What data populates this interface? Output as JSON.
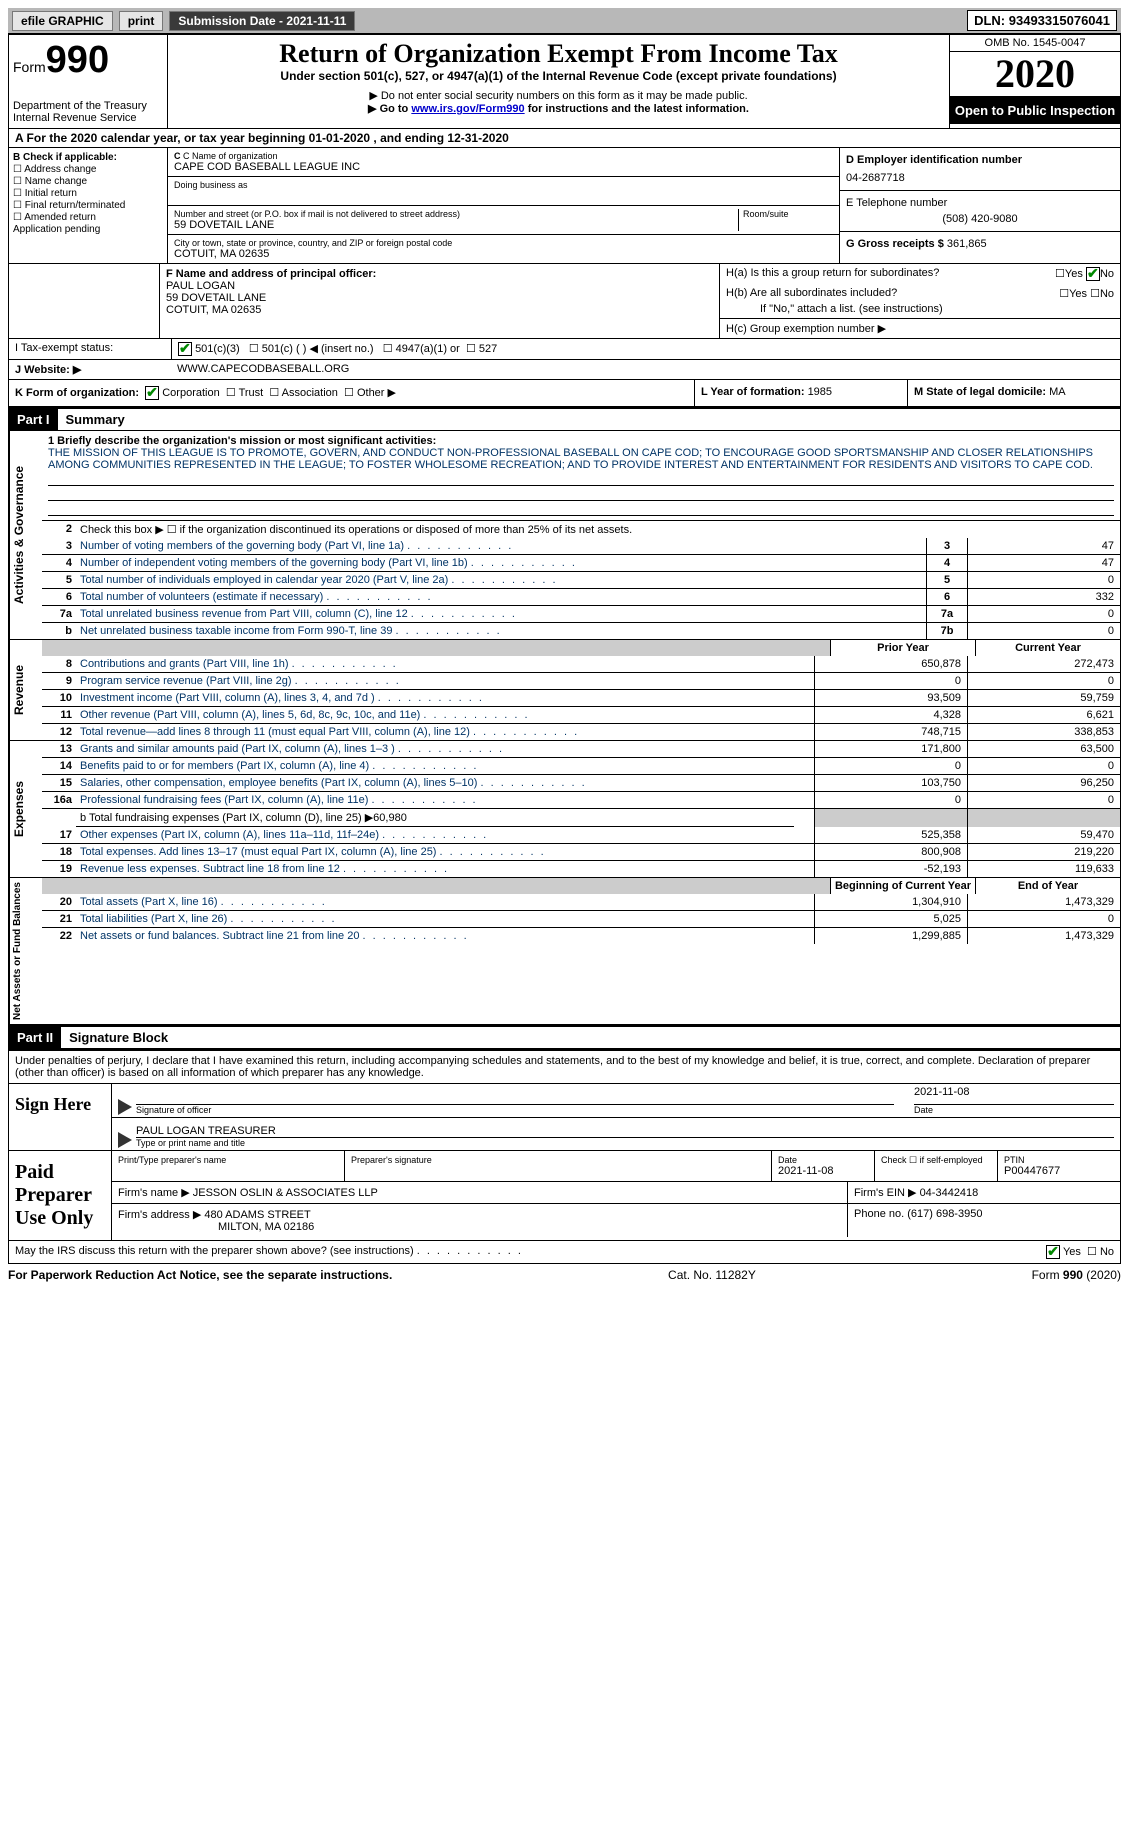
{
  "topbar": {
    "efile": "efile GRAPHIC",
    "print": "print",
    "submission_label": "Submission Date - ",
    "submission_date": "2021-11-11",
    "dln_label": "DLN: ",
    "dln": "93493315076041"
  },
  "header": {
    "form_word": "Form",
    "form_num": "990",
    "dept1": "Department of the Treasury",
    "dept2": "Internal Revenue Service",
    "title": "Return of Organization Exempt From Income Tax",
    "subtitle": "Under section 501(c), 527, or 4947(a)(1) of the Internal Revenue Code (except private foundations)",
    "note1": "▶ Do not enter social security numbers on this form as it may be made public.",
    "note2_pre": "▶ Go to ",
    "note2_link": "www.irs.gov/Form990",
    "note2_post": " for instructions and the latest information.",
    "omb": "OMB No. 1545-0047",
    "year": "2020",
    "open": "Open to Public Inspection"
  },
  "period": {
    "text_pre": "A For the 2020 calendar year, or tax year beginning ",
    "begin": "01-01-2020",
    "mid": " , and ending ",
    "end": "12-31-2020"
  },
  "boxB": {
    "label": "B Check if applicable:",
    "opts": [
      "Address change",
      "Name change",
      "Initial return",
      "Final return/terminated",
      "Amended return",
      "Application pending"
    ]
  },
  "boxC": {
    "name_label": "C Name of organization",
    "name": "CAPE COD BASEBALL LEAGUE INC",
    "dba_label": "Doing business as",
    "addr_label": "Number and street (or P.O. box if mail is not delivered to street address)",
    "room_label": "Room/suite",
    "addr": "59 DOVETAIL LANE",
    "city_label": "City or town, state or province, country, and ZIP or foreign postal code",
    "city": "COTUIT, MA  02635"
  },
  "boxD": {
    "label": "D Employer identification number",
    "ein": "04-2687718"
  },
  "boxE": {
    "label": "E Telephone number",
    "phone": "(508) 420-9080"
  },
  "boxG": {
    "label": "G Gross receipts $ ",
    "amount": "361,865"
  },
  "boxF": {
    "label": "F  Name and address of principal officer:",
    "name": "PAUL LOGAN",
    "addr1": "59 DOVETAIL LANE",
    "addr2": "COTUIT, MA  02635"
  },
  "boxH": {
    "ha": "H(a)  Is this a group return for subordinates?",
    "hb": "H(b)  Are all subordinates included?",
    "hb_note": "If \"No,\" attach a list. (see instructions)",
    "hc": "H(c)  Group exemption number ▶",
    "yes": "Yes",
    "no": "No"
  },
  "rowI": {
    "label": "I  Tax-exempt status:",
    "o1": "501(c)(3)",
    "o2": "501(c) (  ) ◀ (insert no.)",
    "o3": "4947(a)(1) or",
    "o4": "527"
  },
  "rowJ": {
    "label": "J  Website: ▶",
    "url": "WWW.CAPECODBASEBALL.ORG"
  },
  "rowK": {
    "label": "K Form of organization:",
    "o1": "Corporation",
    "o2": "Trust",
    "o3": "Association",
    "o4": "Other ▶"
  },
  "rowL": {
    "label": "L Year of formation: ",
    "val": "1985"
  },
  "rowM": {
    "label": "M State of legal domicile: ",
    "val": "MA"
  },
  "part1": {
    "hdr": "Part I",
    "title": "Summary",
    "tab_gov": "Activities & Governance",
    "tab_rev": "Revenue",
    "tab_exp": "Expenses",
    "tab_net": "Net Assets or Fund Balances",
    "line1_label": "1  Briefly describe the organization's mission or most significant activities:",
    "mission": "THE MISSION OF THIS LEAGUE IS TO PROMOTE, GOVERN, AND CONDUCT NON-PROFESSIONAL BASEBALL ON CAPE COD; TO ENCOURAGE GOOD SPORTSMANSHIP AND CLOSER RELATIONSHIPS AMONG COMMUNITIES REPRESENTED IN THE LEAGUE; TO FOSTER WHOLESOME RECREATION; AND TO PROVIDE INTEREST AND ENTERTAINMENT FOR RESIDENTS AND VISITORS TO CAPE COD.",
    "line2": "Check this box ▶ ☐ if the organization discontinued its operations or disposed of more than 25% of its net assets.",
    "rows_gov": [
      {
        "n": "3",
        "d": "Number of voting members of the governing body (Part VI, line 1a)",
        "c": "3",
        "v": "47"
      },
      {
        "n": "4",
        "d": "Number of independent voting members of the governing body (Part VI, line 1b)",
        "c": "4",
        "v": "47"
      },
      {
        "n": "5",
        "d": "Total number of individuals employed in calendar year 2020 (Part V, line 2a)",
        "c": "5",
        "v": "0"
      },
      {
        "n": "6",
        "d": "Total number of volunteers (estimate if necessary)",
        "c": "6",
        "v": "332"
      },
      {
        "n": "7a",
        "d": "Total unrelated business revenue from Part VIII, column (C), line 12",
        "c": "7a",
        "v": "0"
      },
      {
        "n": "b",
        "d": "Net unrelated business taxable income from Form 990-T, line 39",
        "c": "7b",
        "v": "0"
      }
    ],
    "col_prior": "Prior Year",
    "col_current": "Current Year",
    "rows_rev": [
      {
        "n": "8",
        "d": "Contributions and grants (Part VIII, line 1h)",
        "p": "650,878",
        "c": "272,473"
      },
      {
        "n": "9",
        "d": "Program service revenue (Part VIII, line 2g)",
        "p": "0",
        "c": "0"
      },
      {
        "n": "10",
        "d": "Investment income (Part VIII, column (A), lines 3, 4, and 7d )",
        "p": "93,509",
        "c": "59,759"
      },
      {
        "n": "11",
        "d": "Other revenue (Part VIII, column (A), lines 5, 6d, 8c, 9c, 10c, and 11e)",
        "p": "4,328",
        "c": "6,621"
      },
      {
        "n": "12",
        "d": "Total revenue—add lines 8 through 11 (must equal Part VIII, column (A), line 12)",
        "p": "748,715",
        "c": "338,853"
      }
    ],
    "rows_exp": [
      {
        "n": "13",
        "d": "Grants and similar amounts paid (Part IX, column (A), lines 1–3 )",
        "p": "171,800",
        "c": "63,500"
      },
      {
        "n": "14",
        "d": "Benefits paid to or for members (Part IX, column (A), line 4)",
        "p": "0",
        "c": "0"
      },
      {
        "n": "15",
        "d": "Salaries, other compensation, employee benefits (Part IX, column (A), lines 5–10)",
        "p": "103,750",
        "c": "96,250"
      },
      {
        "n": "16a",
        "d": "Professional fundraising fees (Part IX, column (A), line 11e)",
        "p": "0",
        "c": "0"
      }
    ],
    "line16b": "b  Total fundraising expenses (Part IX, column (D), line 25) ▶60,980",
    "rows_exp2": [
      {
        "n": "17",
        "d": "Other expenses (Part IX, column (A), lines 11a–11d, 11f–24e)",
        "p": "525,358",
        "c": "59,470"
      },
      {
        "n": "18",
        "d": "Total expenses. Add lines 13–17 (must equal Part IX, column (A), line 25)",
        "p": "800,908",
        "c": "219,220"
      },
      {
        "n": "19",
        "d": "Revenue less expenses. Subtract line 18 from line 12",
        "p": "-52,193",
        "c": "119,633"
      }
    ],
    "col_begin": "Beginning of Current Year",
    "col_end": "End of Year",
    "rows_net": [
      {
        "n": "20",
        "d": "Total assets (Part X, line 16)",
        "p": "1,304,910",
        "c": "1,473,329"
      },
      {
        "n": "21",
        "d": "Total liabilities (Part X, line 26)",
        "p": "5,025",
        "c": "0"
      },
      {
        "n": "22",
        "d": "Net assets or fund balances. Subtract line 21 from line 20",
        "p": "1,299,885",
        "c": "1,473,329"
      }
    ]
  },
  "part2": {
    "hdr": "Part II",
    "title": "Signature Block",
    "decl": "Under penalties of perjury, I declare that I have examined this return, including accompanying schedules and statements, and to the best of my knowledge and belief, it is true, correct, and complete. Declaration of preparer (other than officer) is based on all information of which preparer has any knowledge.",
    "sign_here": "Sign Here",
    "sig_officer": "Signature of officer",
    "sig_date": "2021-11-08",
    "date_label": "Date",
    "officer_name": "PAUL LOGAN  TREASURER",
    "type_name": "Type or print name and title",
    "paid_prep": "Paid Preparer Use Only",
    "prep_name_label": "Print/Type preparer's name",
    "prep_sig_label": "Preparer's signature",
    "prep_date_label": "Date",
    "prep_date": "2021-11-08",
    "check_self": "Check ☐ if self-employed",
    "ptin_label": "PTIN",
    "ptin": "P00447677",
    "firm_name_label": "Firm's name    ▶",
    "firm_name": "JESSON OSLIN & ASSOCIATES LLP",
    "firm_ein_label": "Firm's EIN ▶",
    "firm_ein": "04-3442418",
    "firm_addr_label": "Firm's address ▶",
    "firm_addr1": "480 ADAMS STREET",
    "firm_addr2": "MILTON, MA  02186",
    "firm_phone_label": "Phone no. ",
    "firm_phone": "(617) 698-3950",
    "discuss": "May the IRS discuss this return with the preparer shown above? (see instructions)",
    "yes": "Yes",
    "no": "No"
  },
  "footer": {
    "pra": "For Paperwork Reduction Act Notice, see the separate instructions.",
    "cat": "Cat. No. 11282Y",
    "form": "Form 990 (2020)"
  },
  "colors": {
    "link": "#0000cc",
    "navy": "#003366",
    "check": "#008800"
  }
}
